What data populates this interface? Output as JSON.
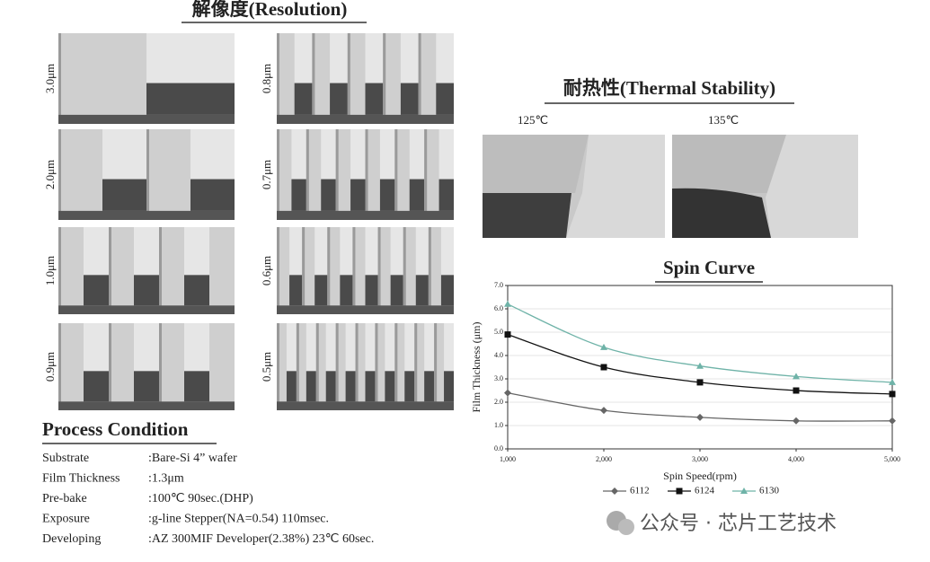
{
  "resolution": {
    "title": "解像度(Resolution)",
    "left_labels": [
      "3.0μm",
      "2.0μm",
      "1.0μm",
      "0.9μm"
    ],
    "right_labels": [
      "0.8μm",
      "0.7μm",
      "0.6μm",
      "0.5μm"
    ]
  },
  "thermal_stability": {
    "title": "耐热性(Thermal Stability)",
    "labels": [
      "125℃",
      "135℃"
    ]
  },
  "process_condition": {
    "title": "Process Condition",
    "rows": [
      [
        "Substrate",
        ":Bare-Si 4” wafer"
      ],
      [
        "Film Thickness",
        ":1.3μm"
      ],
      [
        "Pre-bake",
        ":100℃ 90sec.(DHP)"
      ],
      [
        "Exposure",
        ":g-line Stepper(NA=0.54) 110msec."
      ],
      [
        "Developing",
        ":AZ 300MIF Developer(2.38%) 23℃ 60sec."
      ]
    ]
  },
  "watermark": "公众号 · 芯片工艺技术",
  "chart_data": {
    "type": "line",
    "title": "Spin Curve",
    "x_label": "Spin Speed(rpm)",
    "y_label": "Film Thickness (μm)",
    "x": [
      1000,
      2000,
      3000,
      4000,
      5000
    ],
    "series": [
      {
        "name": "6112",
        "color": "#666666",
        "marker": "diamond",
        "values": [
          2.4,
          1.65,
          1.35,
          1.2,
          1.2
        ]
      },
      {
        "name": "6124",
        "color": "#111111",
        "marker": "square",
        "values": [
          4.9,
          3.5,
          2.85,
          2.5,
          2.35
        ]
      },
      {
        "name": "6130",
        "color": "#6fb3a8",
        "marker": "triangle",
        "values": [
          6.2,
          4.35,
          3.55,
          3.1,
          2.85
        ]
      }
    ],
    "xlim": [
      1000,
      5000
    ],
    "xticks": [
      {
        "value": 1000,
        "label": "1,000"
      },
      {
        "value": 2000,
        "label": "2,000"
      },
      {
        "value": 3000,
        "label": "3,000"
      },
      {
        "value": 4000,
        "label": "4,000"
      },
      {
        "value": 5000,
        "label": "5,000"
      }
    ],
    "ylim": [
      0,
      7
    ],
    "yticks": [
      {
        "value": 0,
        "label": "0.0"
      },
      {
        "value": 1,
        "label": "1.0"
      },
      {
        "value": 2,
        "label": "2.0"
      },
      {
        "value": 3,
        "label": "3.0"
      },
      {
        "value": 4,
        "label": "4.0"
      },
      {
        "value": 5,
        "label": "5.0"
      },
      {
        "value": 6,
        "label": "6.0"
      },
      {
        "value": 7,
        "label": "7.0"
      }
    ],
    "grid": true,
    "legend": "bottom"
  }
}
